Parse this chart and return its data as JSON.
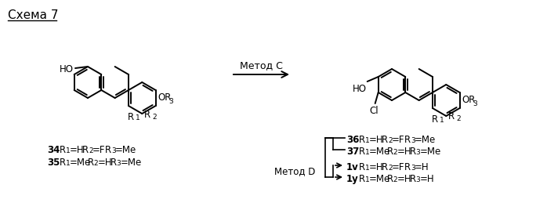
{
  "title": "Схема 7",
  "bg_color": "#ffffff",
  "figsize": [
    6.98,
    2.82
  ],
  "dpi": 100,
  "arrow_label": "Метод С",
  "method_d_label": "Метод D",
  "compounds_left": [
    {
      "num": "34",
      "r1": "H",
      "r2": "F",
      "r3": "Me"
    },
    {
      "num": "35",
      "r1": "Me",
      "r2": "H",
      "r3": "Me"
    }
  ],
  "compounds_right_top": [
    {
      "num": "36",
      "r1": "H",
      "r2": "F",
      "r3": "Me"
    },
    {
      "num": "37",
      "r1": "Me",
      "r2": "H",
      "r3": "Me"
    }
  ],
  "compounds_right_bottom": [
    {
      "num": "1v",
      "r1": "H",
      "r2": "F",
      "r3": "H"
    },
    {
      "num": "1y",
      "r1": "Me",
      "r2": "H",
      "r3": "H"
    }
  ]
}
